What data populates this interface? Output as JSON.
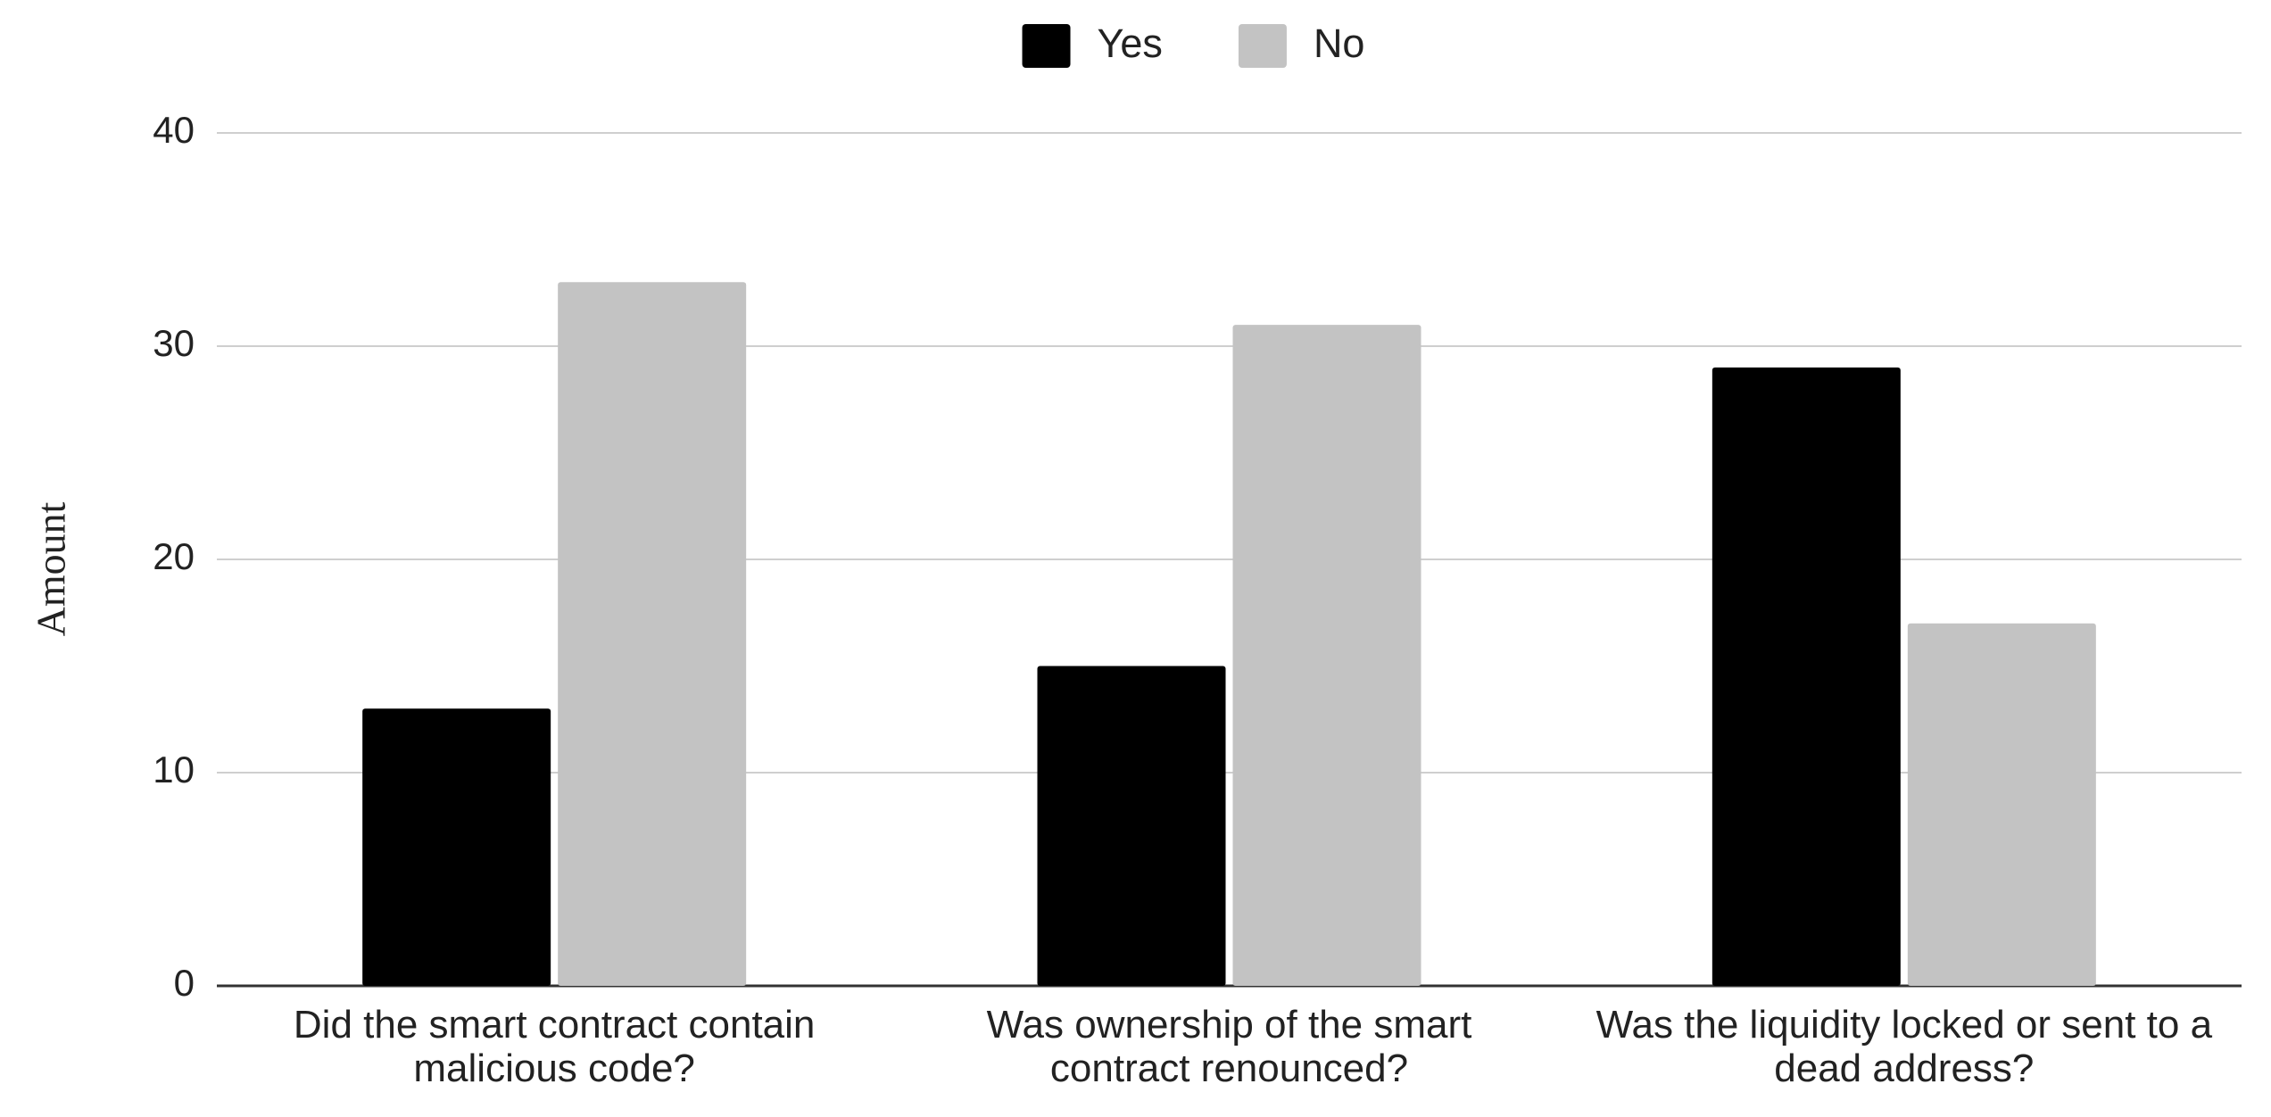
{
  "chart_data": {
    "type": "bar",
    "y_label": "Amount",
    "categories": [
      "Did the smart contract contain malicious code?",
      "Was ownership of the smart contract renounced?",
      "Was the liquidity locked or sent to a dead address?"
    ],
    "series": [
      {
        "name": "Yes",
        "color": "#000000",
        "values": [
          13,
          15,
          29
        ]
      },
      {
        "name": "No",
        "color": "#c3c3c3",
        "values": [
          33,
          31,
          17
        ]
      }
    ],
    "ylim": [
      0,
      40
    ],
    "yticks": [
      0,
      10,
      20,
      30,
      40
    ],
    "grid": true,
    "legend": "top"
  }
}
